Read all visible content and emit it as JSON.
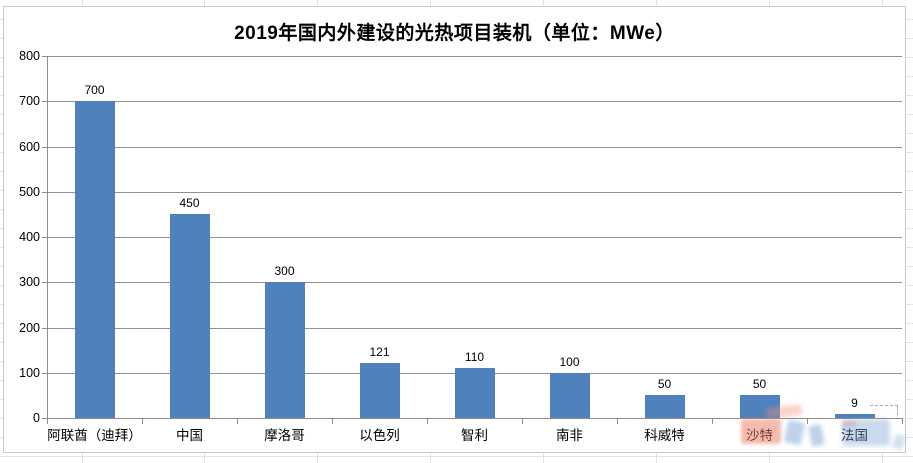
{
  "chart_data": {
    "type": "bar",
    "title": "2019年国内外建设的光热项目装机（单位：MWe）",
    "categories": [
      "阿联酋（迪拜）",
      "中国",
      "摩洛哥",
      "以色列",
      "智利",
      "南非",
      "科威特",
      "沙特",
      "法国"
    ],
    "values": [
      700,
      450,
      300,
      121,
      110,
      100,
      50,
      50,
      9
    ],
    "xlabel": "",
    "ylabel": "",
    "ylim": [
      0,
      800
    ],
    "ytick_step": 100,
    "yticks": [
      0,
      100,
      200,
      300,
      400,
      500,
      600,
      700,
      800
    ],
    "grid": "horizontal",
    "legend": "none",
    "data_labels": "above-bars",
    "bar_color": "#4F81BD",
    "gridline_color": "#909090",
    "axis_color": "#8C8C8C",
    "background": "#FFFFFF"
  },
  "watermark": {
    "description": "illegible faded logo smudges over bottom-right categories",
    "colors": {
      "orange": "#EC785F",
      "blue": "#7AA3D4"
    }
  }
}
